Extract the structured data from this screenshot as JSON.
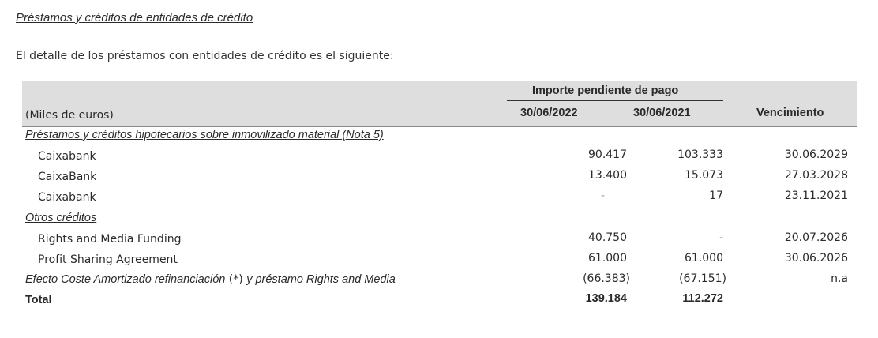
{
  "section_title": "Préstamos y créditos de entidades de crédito",
  "intro": "El detalle de los préstamos con entidades de crédito es el siguiente:",
  "table": {
    "group_header": "Importe pendiente de pago",
    "unit_label": "(Miles de euros)",
    "col_2022": "30/06/2022",
    "col_2021": "30/06/2021",
    "col_venc": "Vencimiento",
    "section1_title": "Préstamos y créditos hipotecarios sobre inmovilizado material (Nota 5)",
    "rows1": [
      {
        "label": "Caixabank",
        "v2022": "90.417",
        "v2021": "103.333",
        "venc": "30.06.2029"
      },
      {
        "label": "CaixaBank",
        "v2022": "13.400",
        "v2021": "15.073",
        "venc": "27.03.2028"
      },
      {
        "label": "Caixabank",
        "v2022": "-",
        "v2021": "17",
        "venc": "23.11.2021"
      }
    ],
    "section2_title": "Otros créditos",
    "rows2": [
      {
        "label": "Rights and Media Funding",
        "v2022": "40.750",
        "v2021": "-",
        "venc": "20.07.2026"
      },
      {
        "label": "Profit Sharing Agreement",
        "v2022": "61.000",
        "v2021": "61.000",
        "venc": "30.06.2026"
      }
    ],
    "efecto": {
      "label_a": "Efecto Coste Amortizado refinanciación",
      "label_b": "(*)",
      "label_c": "y préstamo Rights and Media",
      "v2022": "(66.383)",
      "v2021": "(67.151)",
      "venc": "n.a"
    },
    "total": {
      "label": "Total",
      "v2022": "139.184",
      "v2021": "112.272"
    }
  }
}
